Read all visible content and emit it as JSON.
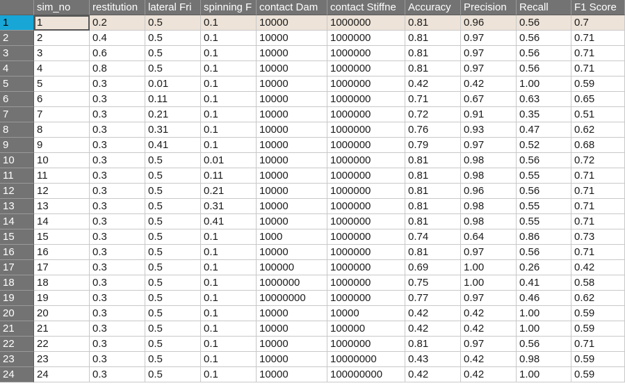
{
  "columns": [
    "sim_no",
    "restitution",
    "lateral Fri",
    "spinning F",
    "contact Dam",
    "contact Stiffne",
    "Accuracy",
    "Precision",
    "Recall",
    "F1 Score"
  ],
  "selected_row": 1,
  "rows": [
    {
      "num": "1",
      "cells": [
        "1",
        "0.2",
        "0.5",
        "0.1",
        "10000",
        "1000000",
        "0.81",
        "0.96",
        "0.56",
        "0.7"
      ]
    },
    {
      "num": "2",
      "cells": [
        "2",
        "0.4",
        "0.5",
        "0.1",
        "10000",
        "1000000",
        "0.81",
        "0.97",
        "0.56",
        "0.71"
      ]
    },
    {
      "num": "3",
      "cells": [
        "3",
        "0.6",
        "0.5",
        "0.1",
        "10000",
        "1000000",
        "0.81",
        "0.97",
        "0.56",
        "0.71"
      ]
    },
    {
      "num": "4",
      "cells": [
        "4",
        "0.8",
        "0.5",
        "0.1",
        "10000",
        "1000000",
        "0.81",
        "0.97",
        "0.56",
        "0.71"
      ]
    },
    {
      "num": "5",
      "cells": [
        "5",
        "0.3",
        "0.01",
        "0.1",
        "10000",
        "1000000",
        "0.42",
        "0.42",
        "1.00",
        "0.59"
      ]
    },
    {
      "num": "6",
      "cells": [
        "6",
        "0.3",
        "0.11",
        "0.1",
        "10000",
        "1000000",
        "0.71",
        "0.67",
        "0.63",
        "0.65"
      ]
    },
    {
      "num": "7",
      "cells": [
        "7",
        "0.3",
        "0.21",
        "0.1",
        "10000",
        "1000000",
        "0.72",
        "0.91",
        "0.35",
        "0.51"
      ]
    },
    {
      "num": "8",
      "cells": [
        "8",
        "0.3",
        "0.31",
        "0.1",
        "10000",
        "1000000",
        "0.76",
        "0.93",
        "0.47",
        "0.62"
      ]
    },
    {
      "num": "9",
      "cells": [
        "9",
        "0.3",
        "0.41",
        "0.1",
        "10000",
        "1000000",
        "0.79",
        "0.97",
        "0.52",
        "0.68"
      ]
    },
    {
      "num": "10",
      "cells": [
        "10",
        "0.3",
        "0.5",
        "0.01",
        "10000",
        "1000000",
        "0.81",
        "0.98",
        "0.56",
        "0.72"
      ]
    },
    {
      "num": "11",
      "cells": [
        "11",
        "0.3",
        "0.5",
        "0.11",
        "10000",
        "1000000",
        "0.81",
        "0.98",
        "0.55",
        "0.71"
      ]
    },
    {
      "num": "12",
      "cells": [
        "12",
        "0.3",
        "0.5",
        "0.21",
        "10000",
        "1000000",
        "0.81",
        "0.96",
        "0.56",
        "0.71"
      ]
    },
    {
      "num": "13",
      "cells": [
        "13",
        "0.3",
        "0.5",
        "0.31",
        "10000",
        "1000000",
        "0.81",
        "0.98",
        "0.55",
        "0.71"
      ]
    },
    {
      "num": "14",
      "cells": [
        "14",
        "0.3",
        "0.5",
        "0.41",
        "10000",
        "1000000",
        "0.81",
        "0.98",
        "0.55",
        "0.71"
      ]
    },
    {
      "num": "15",
      "cells": [
        "15",
        "0.3",
        "0.5",
        "0.1",
        "1000",
        "1000000",
        "0.74",
        "0.64",
        "0.86",
        "0.73"
      ]
    },
    {
      "num": "16",
      "cells": [
        "16",
        "0.3",
        "0.5",
        "0.1",
        "10000",
        "1000000",
        "0.81",
        "0.97",
        "0.56",
        "0.71"
      ]
    },
    {
      "num": "17",
      "cells": [
        "17",
        "0.3",
        "0.5",
        "0.1",
        "100000",
        "1000000",
        "0.69",
        "1.00",
        "0.26",
        "0.42"
      ]
    },
    {
      "num": "18",
      "cells": [
        "18",
        "0.3",
        "0.5",
        "0.1",
        "1000000",
        "1000000",
        "0.75",
        "1.00",
        "0.41",
        "0.58"
      ]
    },
    {
      "num": "19",
      "cells": [
        "19",
        "0.3",
        "0.5",
        "0.1",
        "10000000",
        "1000000",
        "0.77",
        "0.97",
        "0.46",
        "0.62"
      ]
    },
    {
      "num": "20",
      "cells": [
        "20",
        "0.3",
        "0.5",
        "0.1",
        "10000",
        "10000",
        "0.42",
        "0.42",
        "1.00",
        "0.59"
      ]
    },
    {
      "num": "21",
      "cells": [
        "21",
        "0.3",
        "0.5",
        "0.1",
        "10000",
        "100000",
        "0.42",
        "0.42",
        "1.00",
        "0.59"
      ]
    },
    {
      "num": "22",
      "cells": [
        "22",
        "0.3",
        "0.5",
        "0.1",
        "10000",
        "1000000",
        "0.81",
        "0.97",
        "0.56",
        "0.71"
      ]
    },
    {
      "num": "23",
      "cells": [
        "23",
        "0.3",
        "0.5",
        "0.1",
        "10000",
        "10000000",
        "0.43",
        "0.42",
        "0.98",
        "0.59"
      ]
    },
    {
      "num": "24",
      "cells": [
        "24",
        "0.3",
        "0.5",
        "0.1",
        "10000",
        "100000000",
        "0.42",
        "0.42",
        "1.00",
        "0.59"
      ]
    }
  ]
}
